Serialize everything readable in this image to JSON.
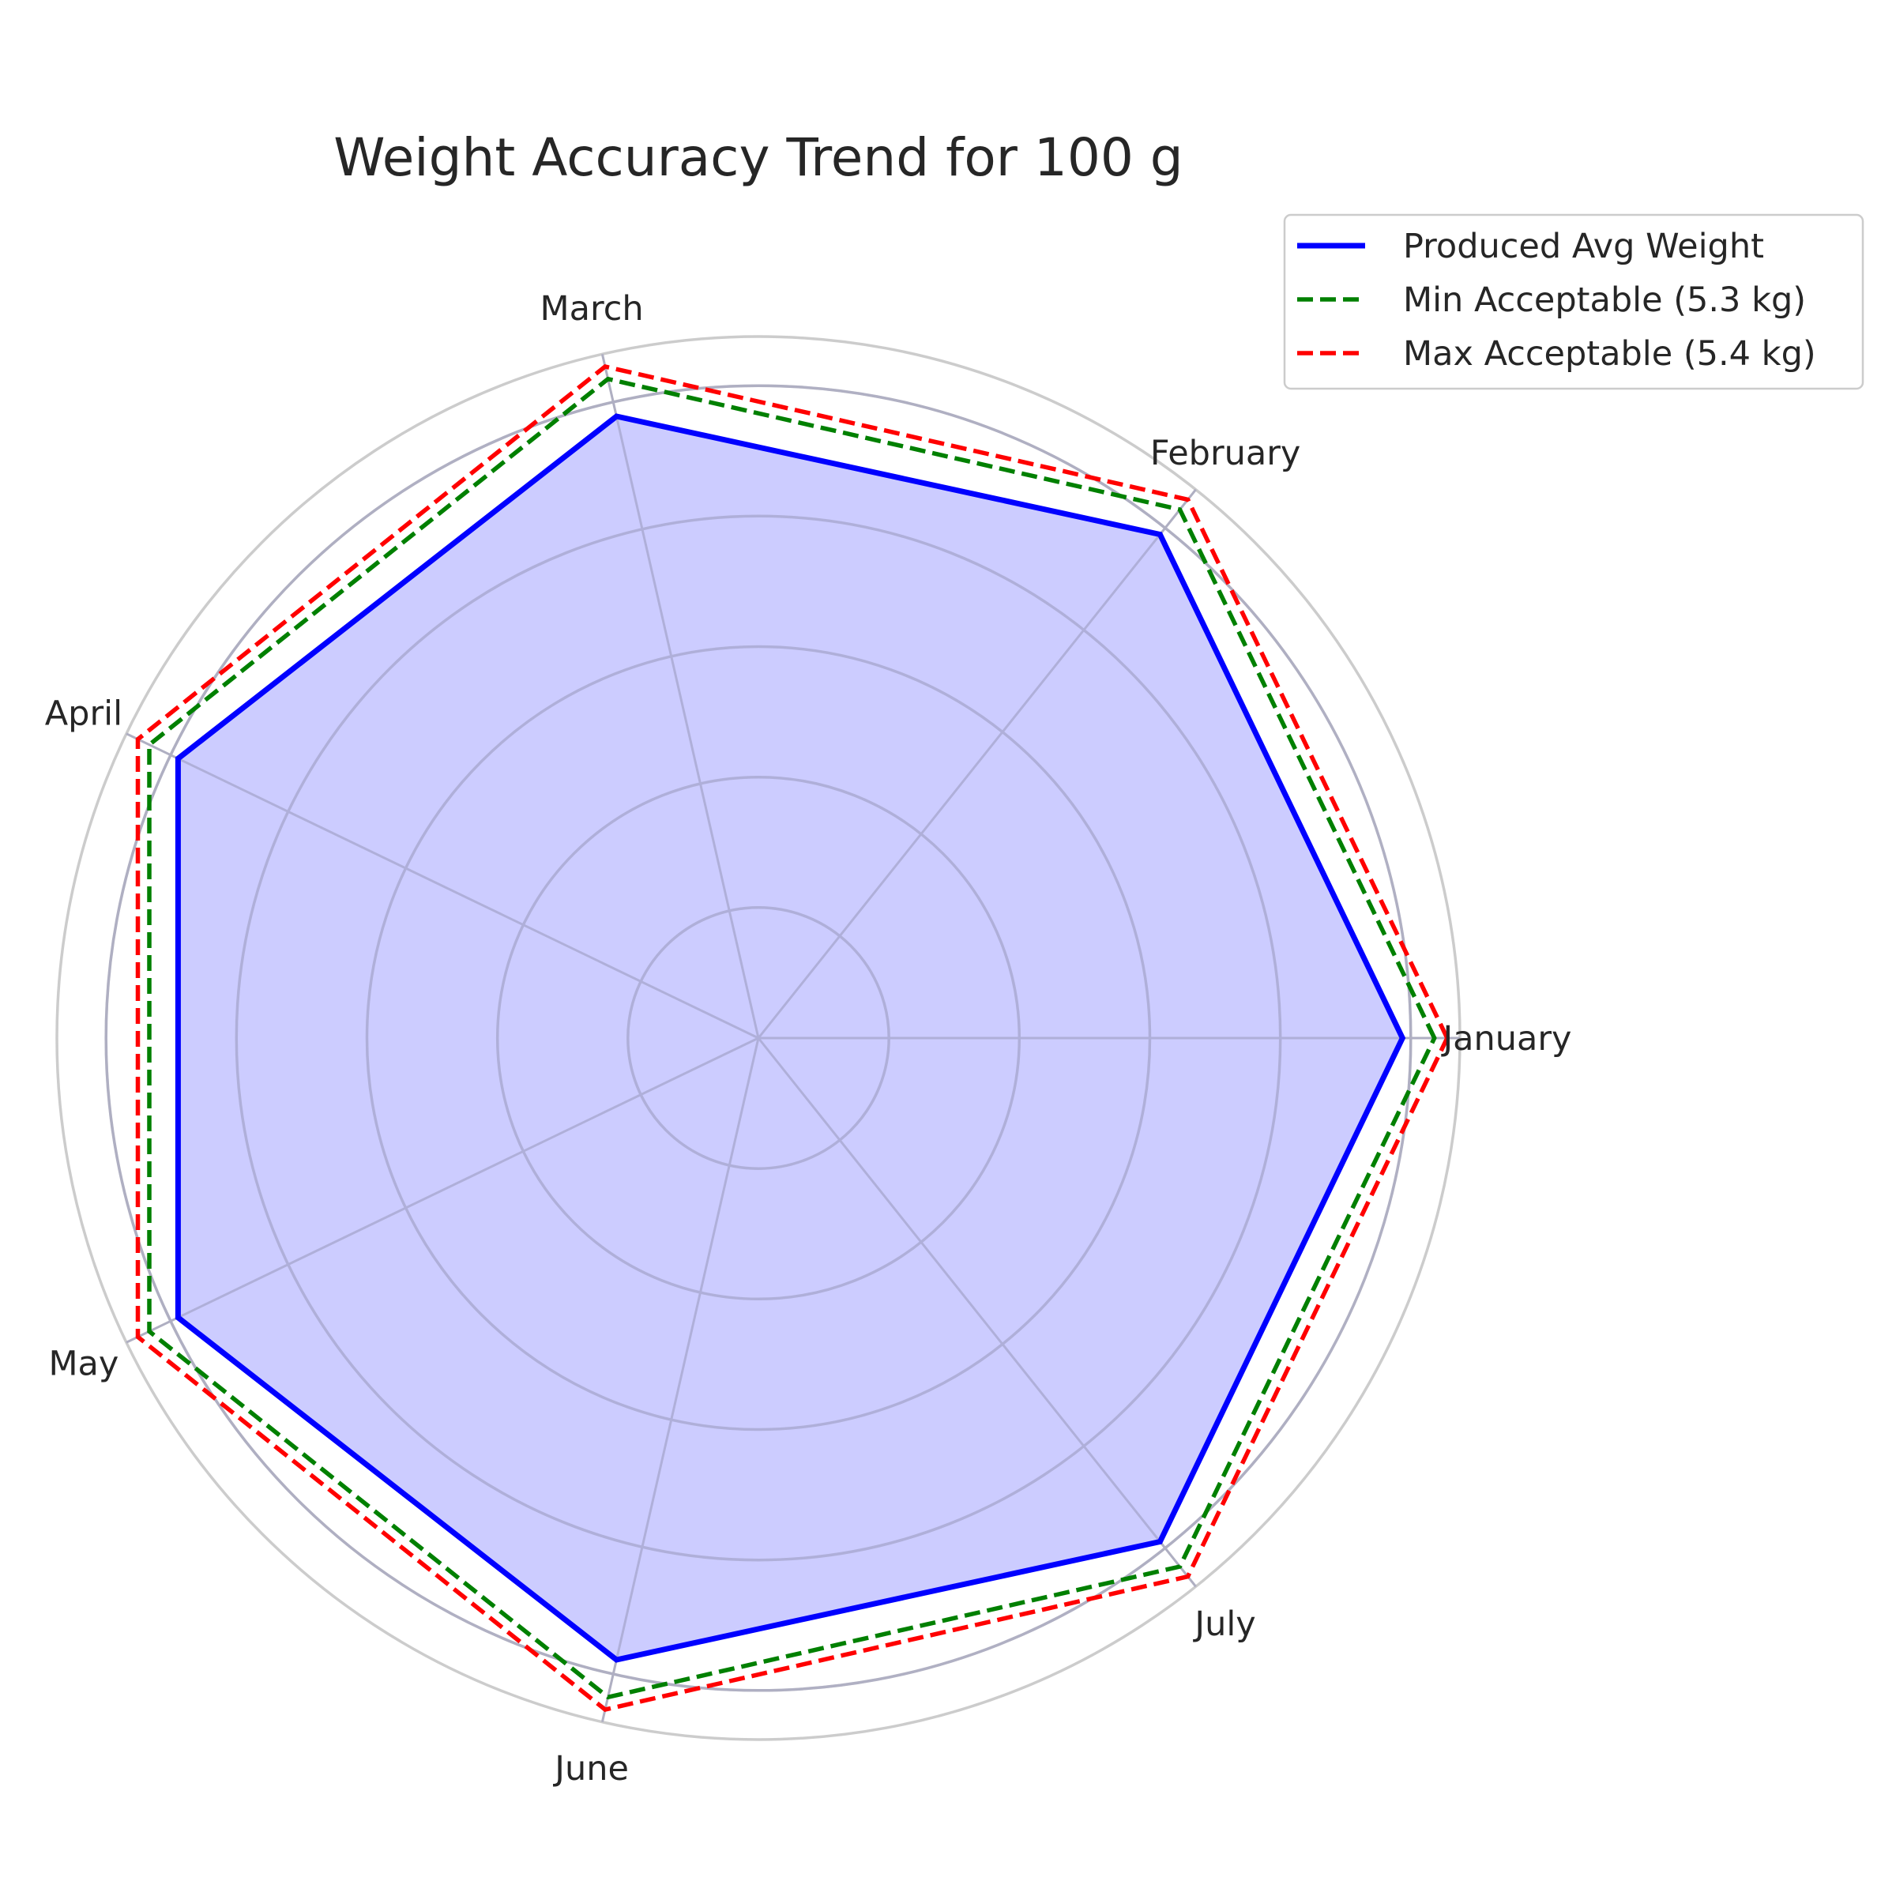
{
  "chart_data": {
    "type": "radar",
    "title": "Weight Accuracy Trend for 100 g",
    "categories": [
      "January",
      "February",
      "March",
      "April",
      "May",
      "June",
      "July"
    ],
    "rlim": [
      0,
      5.5
    ],
    "grid": true,
    "legend_position": "top-right",
    "series": [
      {
        "name": "Produced Avg Weight",
        "values": [
          5.05,
          5.05,
          5.0,
          5.05,
          5.05,
          5.0,
          5.05
        ],
        "color": "#0000ff",
        "style": "solid",
        "fill": true,
        "fill_color": "#ccccff"
      },
      {
        "name": "Min Acceptable (5.3 kg)",
        "values": [
          5.3,
          5.3,
          5.3,
          5.3,
          5.3,
          5.3,
          5.3
        ],
        "color": "#008000",
        "style": "dashed"
      },
      {
        "name": "Max Acceptable (5.4 kg)",
        "values": [
          5.4,
          5.4,
          5.4,
          5.4,
          5.4,
          5.4,
          5.4
        ],
        "color": "#ff0000",
        "style": "dashed"
      }
    ]
  }
}
